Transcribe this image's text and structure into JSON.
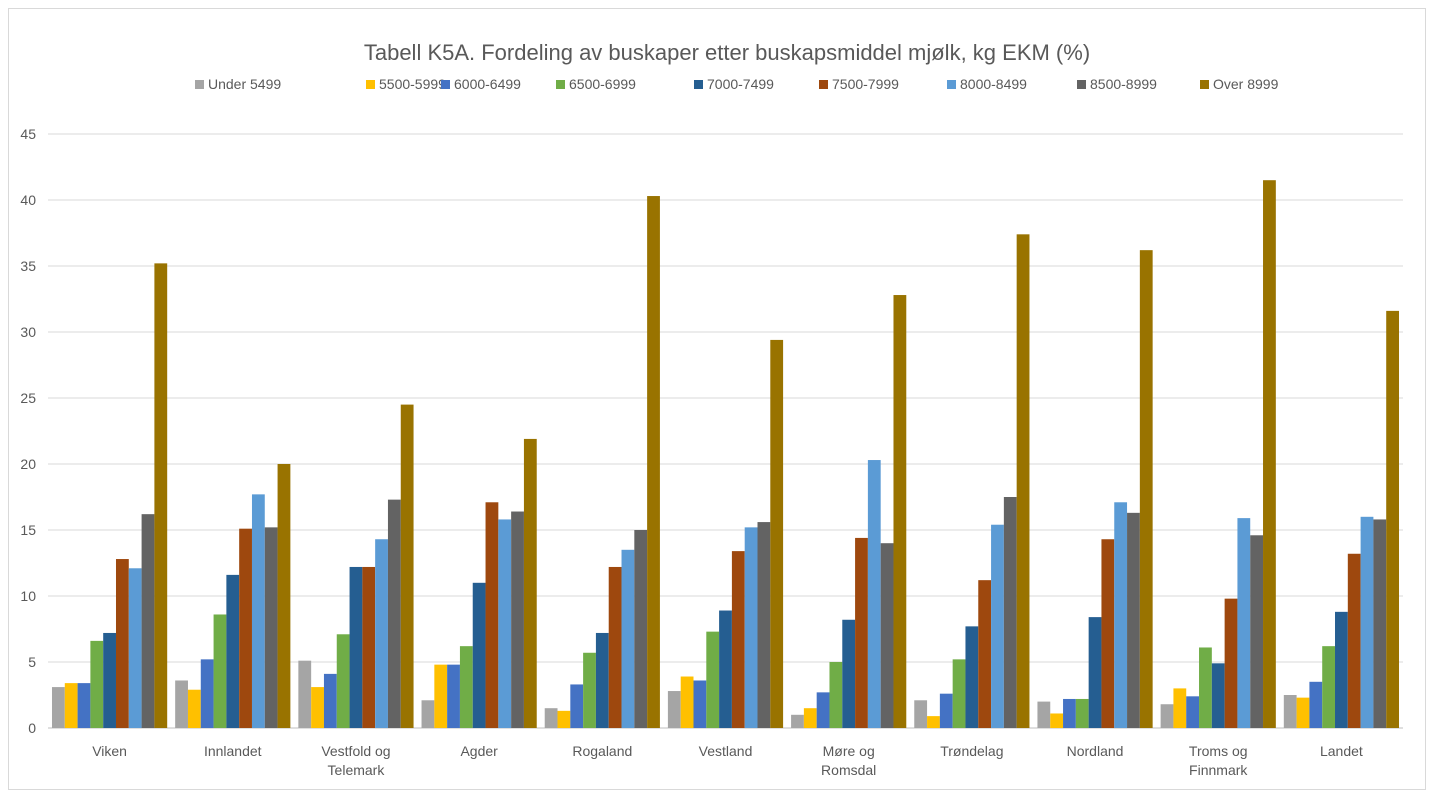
{
  "chart_data": {
    "type": "bar",
    "title": "Tabell K5A.  Fordeling av buskaper etter buskapsmiddel mjølk, kg EKM (%)",
    "xlabel": "",
    "ylabel": "",
    "ylim": [
      0,
      45
    ],
    "yticks": [
      "0",
      "5",
      "10",
      "15",
      "20",
      "25",
      "30",
      "35",
      "40",
      "45"
    ],
    "grid": true,
    "legend_position": "top",
    "categories": [
      [
        "Viken"
      ],
      [
        "Innlandet"
      ],
      [
        "Vestfold og",
        "Telemark"
      ],
      [
        "Agder"
      ],
      [
        "Rogaland"
      ],
      [
        "Vestland"
      ],
      [
        "Møre og",
        "Romsdal"
      ],
      [
        "Trøndelag"
      ],
      [
        "Nordland"
      ],
      [
        "Troms og",
        "Finnmark"
      ],
      [
        "Landet"
      ]
    ],
    "series": [
      {
        "name": "Under 5499",
        "color": "#a5a5a5",
        "values": [
          3.1,
          3.6,
          5.1,
          2.1,
          1.5,
          2.8,
          1.0,
          2.1,
          2.0,
          1.8,
          2.5
        ]
      },
      {
        "name": "5500-5999",
        "color": "#ffc000",
        "values": [
          3.4,
          2.9,
          3.1,
          4.8,
          1.3,
          3.9,
          1.5,
          0.9,
          1.1,
          3.0,
          2.3
        ]
      },
      {
        "name": "6000-6499",
        "color": "#4472c4",
        "values": [
          3.4,
          5.2,
          4.1,
          4.8,
          3.3,
          3.6,
          2.7,
          2.6,
          2.2,
          2.4,
          3.5
        ]
      },
      {
        "name": "6500-6999",
        "color": "#70ad47",
        "values": [
          6.6,
          8.6,
          7.1,
          6.2,
          5.7,
          7.3,
          5.0,
          5.2,
          2.2,
          6.1,
          6.2
        ]
      },
      {
        "name": "7000-7499",
        "color": "#255e91",
        "values": [
          7.2,
          11.6,
          12.2,
          11.0,
          7.2,
          8.9,
          8.2,
          7.7,
          8.4,
          4.9,
          8.8
        ]
      },
      {
        "name": "7500-7999",
        "color": "#9e480e",
        "values": [
          12.8,
          15.1,
          12.2,
          17.1,
          12.2,
          13.4,
          14.4,
          11.2,
          14.3,
          9.8,
          13.2
        ]
      },
      {
        "name": "8000-8499",
        "color": "#5b9bd5",
        "values": [
          12.1,
          17.7,
          14.3,
          15.8,
          13.5,
          15.2,
          20.3,
          15.4,
          17.1,
          15.9,
          16.0
        ]
      },
      {
        "name": "8500-8999",
        "color": "#636363",
        "values": [
          16.2,
          15.2,
          17.3,
          16.4,
          15.0,
          15.6,
          14.0,
          17.5,
          16.3,
          14.6,
          15.8
        ]
      },
      {
        "name": "Over 8999",
        "color": "#997300",
        "values": [
          35.2,
          20.0,
          24.5,
          21.9,
          40.3,
          29.4,
          32.8,
          37.4,
          36.2,
          41.5,
          31.6
        ]
      }
    ]
  }
}
